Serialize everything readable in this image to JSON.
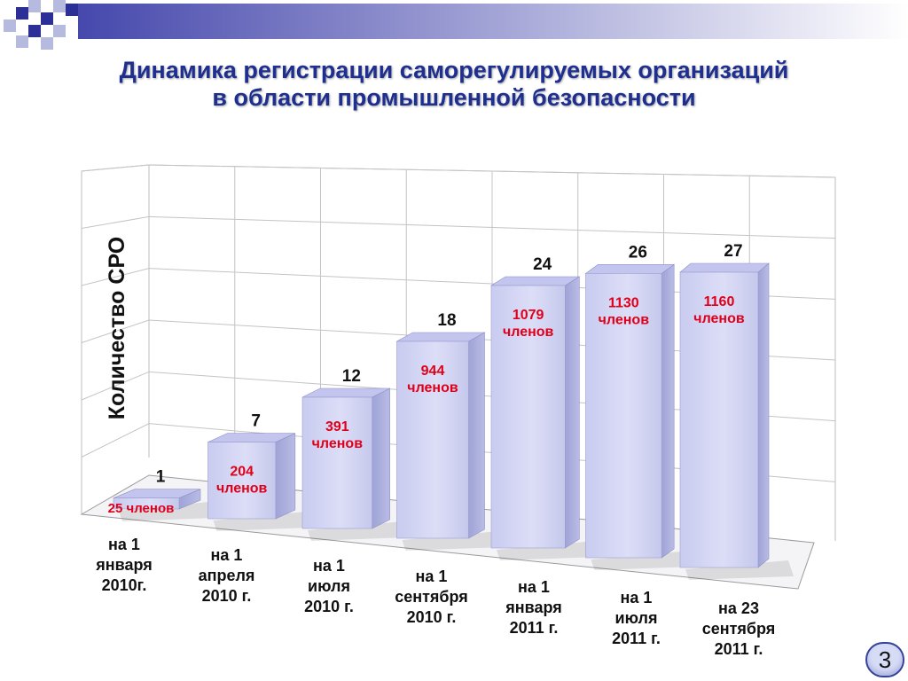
{
  "header": {
    "title_line1": "Динамика регистрации саморегулируемых организаций",
    "title_line2": "в области промышленной безопасности"
  },
  "page_number": "3",
  "colors": {
    "title": "#1f2f8f",
    "bar_front": "#d4d6f3",
    "bar_side": "#a9acd9",
    "bar_top": "#c3c5ee",
    "member_label": "#e0001a",
    "accent": "#1f2f8f"
  },
  "chart_data": {
    "type": "bar",
    "style": "3d",
    "ylabel": "Количество СРО",
    "xlabel": "",
    "categories": [
      [
        "на 1",
        "января",
        "2010г."
      ],
      [
        "на 1",
        "апреля",
        "2010 г."
      ],
      [
        "на 1",
        "июля",
        "2010 г."
      ],
      [
        "на 1",
        "сентября",
        "2010 г."
      ],
      [
        "на 1",
        "января",
        "2011 г."
      ],
      [
        "на 1",
        "июля",
        "2011 г."
      ],
      [
        "на 23",
        "сентября",
        "2011 г."
      ]
    ],
    "values": [
      1,
      7,
      12,
      18,
      24,
      26,
      27
    ],
    "member_labels": [
      [
        "25 членов"
      ],
      [
        "204",
        "членов"
      ],
      [
        "391",
        "членов"
      ],
      [
        "944",
        "членов"
      ],
      [
        "1079",
        "членов"
      ],
      [
        "1130",
        "членов"
      ],
      [
        "1160",
        "членов"
      ]
    ],
    "ylim": [
      0,
      30
    ],
    "grid": true,
    "legend": "none"
  }
}
